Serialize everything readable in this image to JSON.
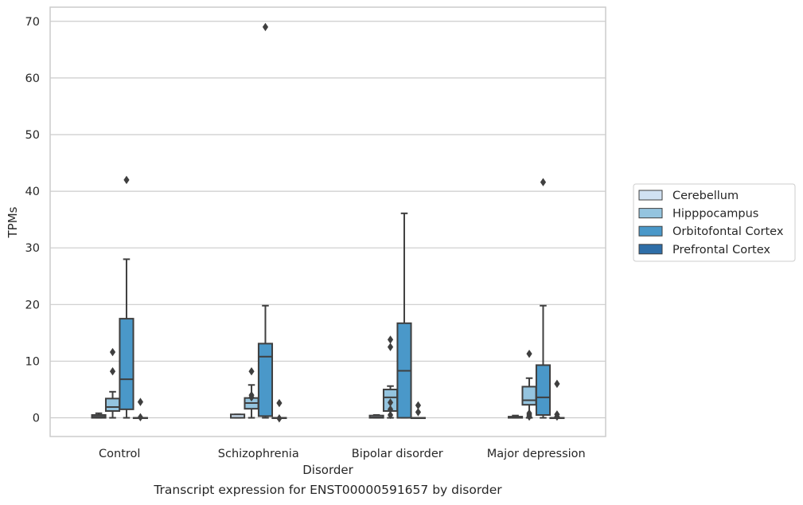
{
  "caption": "Transcript expression for ENST00000591657 by disorder",
  "chart_data": {
    "type": "box",
    "title": "",
    "xlabel": "Disorder",
    "ylabel": "TPMs",
    "categories": [
      "Control",
      "Schizophrenia",
      "Bipolar disorder",
      "Major depression"
    ],
    "yticks": [
      0,
      10,
      20,
      30,
      40,
      50,
      60,
      70
    ],
    "ylim": [
      -3.3,
      72.5
    ],
    "grid": "horizontal",
    "legend_position": "right",
    "series": [
      {
        "name": "Cerebellum",
        "color": "#d0e1f2",
        "boxes": [
          {
            "min": 0.0,
            "q1": 0.0,
            "median": 0.2,
            "q3": 0.5,
            "max": 0.8,
            "outliers": []
          },
          {
            "min": 0.0,
            "q1": 0.0,
            "median": 0.0,
            "q3": 0.6,
            "max": 0.6,
            "outliers": []
          },
          {
            "min": 0.0,
            "q1": 0.0,
            "median": 0.1,
            "q3": 0.4,
            "max": 0.5,
            "outliers": []
          },
          {
            "min": 0.0,
            "q1": 0.0,
            "median": 0.0,
            "q3": 0.2,
            "max": 0.4,
            "outliers": []
          }
        ]
      },
      {
        "name": "Hipppocampus",
        "color": "#94c4df",
        "boxes": [
          {
            "min": 0.0,
            "q1": 1.2,
            "median": 1.9,
            "q3": 3.4,
            "max": 4.6,
            "outliers": [
              8.2,
              11.6
            ]
          },
          {
            "min": 0.0,
            "q1": 1.6,
            "median": 2.6,
            "q3": 3.5,
            "max": 5.8,
            "outliers": [
              3.6,
              4.0,
              8.2
            ]
          },
          {
            "min": 0.0,
            "q1": 1.2,
            "median": 3.6,
            "q3": 5.0,
            "max": 5.6,
            "outliers": [
              0.5,
              1.5,
              2.7,
              12.5,
              13.8
            ]
          },
          {
            "min": 0.0,
            "q1": 2.3,
            "median": 3.1,
            "q3": 5.5,
            "max": 7.0,
            "outliers": [
              0.2,
              0.5,
              0.8,
              11.3
            ]
          }
        ]
      },
      {
        "name": "Orbitofontal Cortex",
        "color": "#4a98c9",
        "boxes": [
          {
            "min": 0.0,
            "q1": 1.5,
            "median": 6.8,
            "q3": 17.5,
            "max": 28.0,
            "outliers": [
              42.0
            ]
          },
          {
            "min": 0.0,
            "q1": 0.3,
            "median": 10.8,
            "q3": 13.1,
            "max": 19.8,
            "outliers": [
              69.0
            ]
          },
          {
            "min": 0.0,
            "q1": 0.0,
            "median": 8.3,
            "q3": 16.7,
            "max": 36.1,
            "outliers": []
          },
          {
            "min": 0.0,
            "q1": 0.5,
            "median": 3.6,
            "q3": 9.3,
            "max": 19.8,
            "outliers": [
              41.6
            ]
          }
        ]
      },
      {
        "name": "Prefrontal Cortex",
        "color": "#2e6ea8",
        "boxes": [
          {
            "min": 0.0,
            "q1": 0.0,
            "median": 0.0,
            "q3": 0.0,
            "max": 0.0,
            "outliers": [
              0.1,
              2.8
            ]
          },
          {
            "min": 0.0,
            "q1": 0.0,
            "median": 0.0,
            "q3": 0.0,
            "max": 0.0,
            "outliers": [
              -0.1,
              2.6
            ]
          },
          {
            "min": 0.0,
            "q1": 0.0,
            "median": 0.0,
            "q3": 0.0,
            "max": 0.0,
            "outliers": [
              1.0,
              2.2
            ]
          },
          {
            "min": 0.0,
            "q1": 0.0,
            "median": 0.0,
            "q3": 0.0,
            "max": 0.0,
            "outliers": [
              0.2,
              0.6,
              6.0
            ]
          }
        ]
      }
    ]
  }
}
